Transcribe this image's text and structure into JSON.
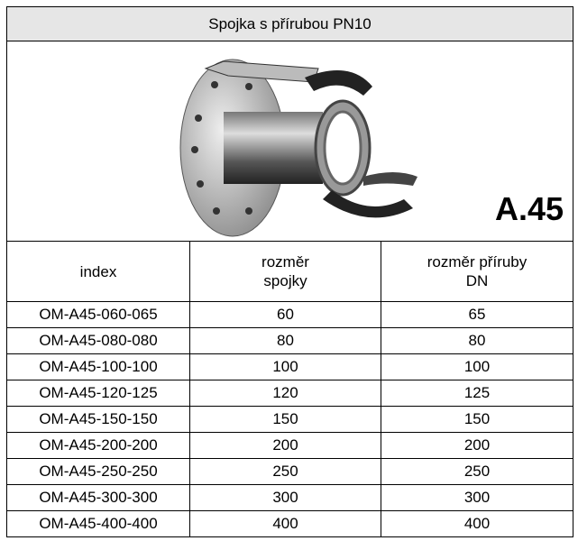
{
  "header": {
    "title": "Spojka s přírubou PN10"
  },
  "image": {
    "label": "A.45"
  },
  "table": {
    "columns": [
      [
        "index"
      ],
      [
        "rozměr",
        "spojky"
      ],
      [
        "rozměr příruby",
        "DN"
      ]
    ],
    "rows": [
      [
        "OM-A45-060-065",
        60,
        65
      ],
      [
        "OM-A45-080-080",
        80,
        80
      ],
      [
        "OM-A45-100-100",
        100,
        100
      ],
      [
        "OM-A45-120-125",
        120,
        125
      ],
      [
        "OM-A45-150-150",
        150,
        150
      ],
      [
        "OM-A45-200-200",
        200,
        200
      ],
      [
        "OM-A45-250-250",
        250,
        250
      ],
      [
        "OM-A45-300-300",
        300,
        300
      ],
      [
        "OM-A45-400-400",
        400,
        400
      ]
    ]
  }
}
